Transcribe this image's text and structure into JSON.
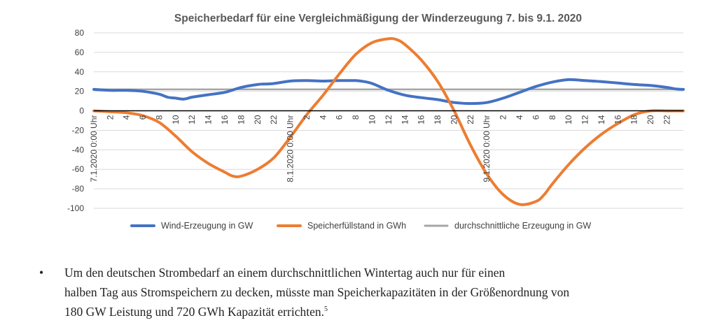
{
  "chart_data": {
    "type": "line",
    "title": "Speicherbedarf für eine Vergleichmäßigung der Winderzeugung 7. bis 9.1. 2020",
    "ylim": [
      -100,
      80
    ],
    "yticks": [
      80,
      60,
      40,
      20,
      0,
      -20,
      -40,
      -60,
      -80,
      -100
    ],
    "x_hours": [
      0,
      72
    ],
    "x_tick_labels": [
      "7.1.2020 0:00 Uhr",
      "2",
      "4",
      "6",
      "8",
      "10",
      "12",
      "14",
      "16",
      "18",
      "20",
      "22",
      "8.1.2020 0:00 Uhr",
      "2",
      "4",
      "6",
      "8",
      "10",
      "12",
      "14",
      "16",
      "18",
      "20",
      "22",
      "9.1.2020 0:00 Uhr",
      "2",
      "4",
      "6",
      "8",
      "10",
      "12",
      "14",
      "16",
      "18",
      "20",
      "22"
    ],
    "legend_position": "bottom",
    "grid": true,
    "series": [
      {
        "name": "Wind-Erzeugung in GW",
        "color": "#4472C4",
        "x": [
          0,
          2,
          4,
          6,
          8,
          9,
          10,
          11,
          12,
          14,
          16,
          18,
          20,
          21,
          22,
          24,
          26,
          28,
          30,
          32,
          33,
          34,
          36,
          38,
          40,
          42,
          44,
          46,
          48,
          50,
          52,
          54,
          56,
          58,
          60,
          61,
          62,
          64,
          66,
          68,
          70,
          71,
          72
        ],
        "y": [
          22,
          21,
          21,
          20,
          17,
          14,
          13,
          12,
          14,
          16.5,
          19,
          24,
          27,
          27.5,
          28,
          30.5,
          31,
          30.5,
          31,
          31,
          30,
          28,
          21,
          16,
          13.5,
          11.5,
          8.5,
          7.5,
          8.5,
          13,
          19,
          25,
          29.5,
          32,
          31,
          30.5,
          30,
          28.5,
          27,
          26,
          24,
          22.5,
          22
        ]
      },
      {
        "name": "Speicherfüllstand in GWh",
        "color": "#ED7D31",
        "x": [
          0,
          2,
          4,
          6,
          8,
          10,
          12,
          14,
          16,
          17,
          18,
          20,
          22,
          24,
          26,
          28,
          30,
          32,
          34,
          36,
          37,
          38,
          40,
          42,
          44,
          46,
          48,
          50,
          52,
          54,
          55,
          56,
          58,
          60,
          62,
          64,
          66,
          68,
          70,
          71,
          72
        ],
        "y": [
          0,
          -1,
          -2,
          -5,
          -12,
          -26,
          -42,
          -54,
          -63,
          -67,
          -67,
          -60,
          -48,
          -27,
          -4,
          16,
          38,
          58,
          70,
          74,
          73,
          68,
          52,
          30,
          0,
          -35,
          -65,
          -86,
          -96,
          -93,
          -86,
          -75,
          -55,
          -38,
          -24,
          -13,
          -4,
          0,
          0,
          0,
          0
        ]
      },
      {
        "name": "durchschnittliche Erzeugung in GW",
        "color": "#A5A5A5",
        "x": [
          0,
          72
        ],
        "y": [
          22,
          22
        ]
      }
    ]
  },
  "text_block": {
    "bullet": "•",
    "line1": "Um den deutschen Strombedarf an einem durchschnittlichen Wintertag auch nur für einen",
    "line2": "halben Tag aus Stromspeichern zu decken, müsste man Speicherkapazitäten in der Größenordnung von",
    "line3": "180 GW Leistung und 720 GWh Kapazität errichten.",
    "footnote": "5"
  }
}
